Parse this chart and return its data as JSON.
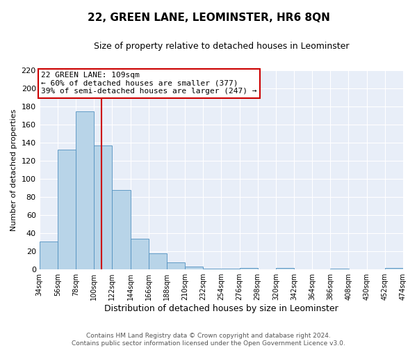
{
  "title": "22, GREEN LANE, LEOMINSTER, HR6 8QN",
  "subtitle": "Size of property relative to detached houses in Leominster",
  "xlabel": "Distribution of detached houses by size in Leominster",
  "ylabel": "Number of detached properties",
  "bin_edges": [
    34,
    56,
    78,
    100,
    122,
    144,
    166,
    188,
    210,
    232,
    254,
    276,
    298,
    320,
    342,
    364,
    386,
    408,
    430,
    452,
    474
  ],
  "bar_heights": [
    31,
    132,
    174,
    137,
    88,
    34,
    18,
    8,
    3,
    1,
    1,
    2,
    0,
    2,
    0,
    0,
    1,
    0,
    0,
    2
  ],
  "bar_color": "#b8d4e8",
  "bar_edge_color": "#5090c0",
  "property_line_x": 109,
  "property_line_color": "#cc0000",
  "annotation_title": "22 GREEN LANE: 109sqm",
  "annotation_line1": "← 60% of detached houses are smaller (377)",
  "annotation_line2": "39% of semi-detached houses are larger (247) →",
  "annotation_box_color": "#ffffff",
  "annotation_box_edge_color": "#cc0000",
  "ylim": [
    0,
    220
  ],
  "yticks": [
    0,
    20,
    40,
    60,
    80,
    100,
    120,
    140,
    160,
    180,
    200,
    220
  ],
  "tick_labels": [
    "34sqm",
    "56sqm",
    "78sqm",
    "100sqm",
    "122sqm",
    "144sqm",
    "166sqm",
    "188sqm",
    "210sqm",
    "232sqm",
    "254sqm",
    "276sqm",
    "298sqm",
    "320sqm",
    "342sqm",
    "364sqm",
    "386sqm",
    "408sqm",
    "430sqm",
    "452sqm",
    "474sqm"
  ],
  "footer_line1": "Contains HM Land Registry data © Crown copyright and database right 2024.",
  "footer_line2": "Contains public sector information licensed under the Open Government Licence v3.0.",
  "fig_background": "#ffffff",
  "plot_background": "#e8eef8",
  "grid_color": "#ffffff"
}
